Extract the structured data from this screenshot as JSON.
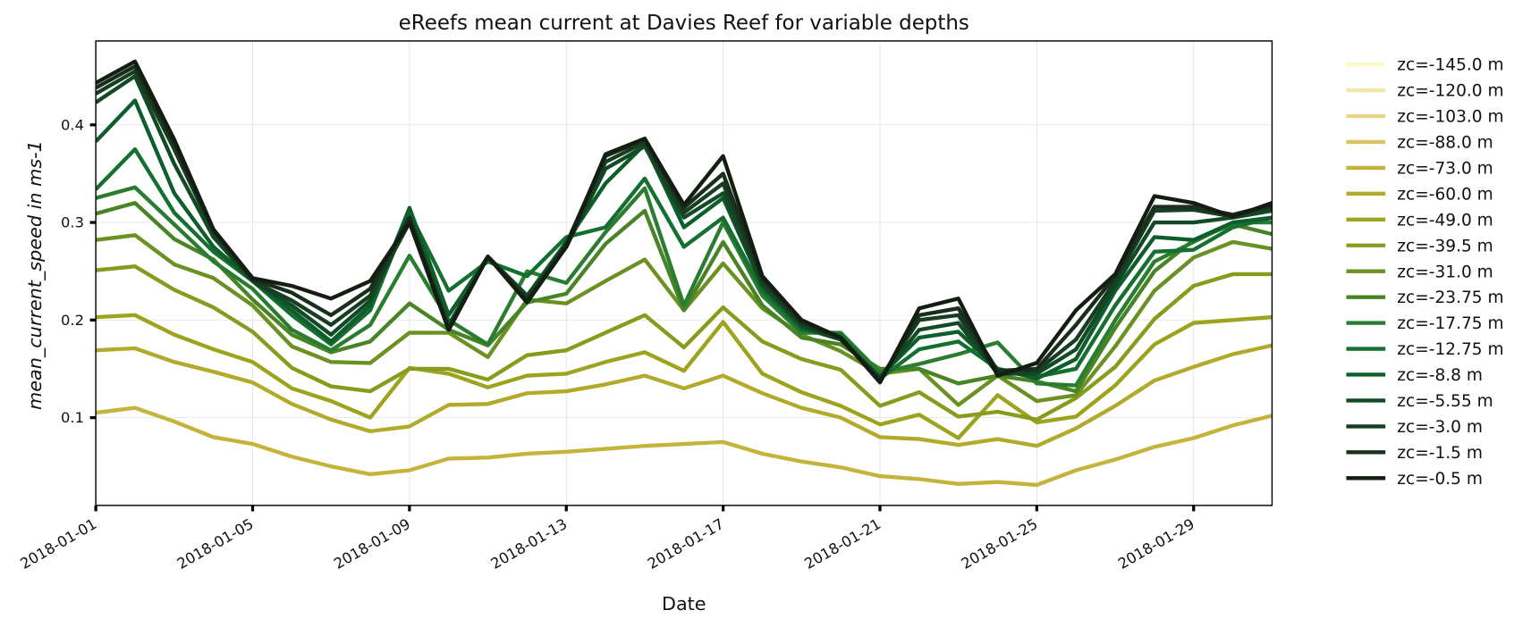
{
  "chart_data": {
    "type": "line",
    "title": "eReefs mean current at Davies Reef for variable depths",
    "xlabel": "Date",
    "ylabel": "mean_current_speed in ms-1",
    "x": [
      "2018-01-01",
      "2018-01-02",
      "2018-01-03",
      "2018-01-04",
      "2018-01-05",
      "2018-01-06",
      "2018-01-07",
      "2018-01-08",
      "2018-01-09",
      "2018-01-10",
      "2018-01-11",
      "2018-01-12",
      "2018-01-13",
      "2018-01-14",
      "2018-01-15",
      "2018-01-16",
      "2018-01-17",
      "2018-01-18",
      "2018-01-19",
      "2018-01-20",
      "2018-01-21",
      "2018-01-22",
      "2018-01-23",
      "2018-01-24",
      "2018-01-25",
      "2018-01-26",
      "2018-01-27",
      "2018-01-28",
      "2018-01-29",
      "2018-01-30",
      "2018-01-31"
    ],
    "xlim": [
      "2018-01-01",
      "2018-01-31"
    ],
    "xticks": [
      "2018-01-01",
      "2018-01-05",
      "2018-01-09",
      "2018-01-13",
      "2018-01-17",
      "2018-01-21",
      "2018-01-25",
      "2018-01-29"
    ],
    "ylim": [
      0.01,
      0.486
    ],
    "yticks": [
      0.1,
      0.2,
      0.3,
      0.4
    ],
    "grid": true,
    "legend": "outside right",
    "series": [
      {
        "name": "zc=-145.0 m",
        "color": "#fdf9c4",
        "values": [
          null,
          null,
          null,
          null,
          null,
          null,
          null,
          null,
          null,
          null,
          null,
          null,
          null,
          null,
          null,
          null,
          null,
          null,
          null,
          null,
          null,
          null,
          null,
          null,
          null,
          null,
          null,
          null,
          null,
          null,
          null
        ]
      },
      {
        "name": "zc=-120.0 m",
        "color": "#f3e7a6",
        "values": [
          null,
          null,
          null,
          null,
          null,
          null,
          null,
          null,
          null,
          null,
          null,
          null,
          null,
          null,
          null,
          null,
          null,
          null,
          null,
          null,
          null,
          null,
          null,
          null,
          null,
          null,
          null,
          null,
          null,
          null,
          null
        ]
      },
      {
        "name": "zc=-103.0 m",
        "color": "#e8d486",
        "values": [
          null,
          null,
          null,
          null,
          null,
          null,
          null,
          null,
          null,
          null,
          null,
          null,
          null,
          null,
          null,
          null,
          null,
          null,
          null,
          null,
          null,
          null,
          null,
          null,
          null,
          null,
          null,
          null,
          null,
          null,
          null
        ]
      },
      {
        "name": "zc=-88.0 m",
        "color": "#dac361",
        "values": [
          null,
          null,
          null,
          null,
          null,
          null,
          null,
          null,
          null,
          null,
          null,
          null,
          null,
          null,
          null,
          null,
          null,
          null,
          null,
          null,
          null,
          null,
          null,
          null,
          null,
          null,
          null,
          null,
          null,
          null,
          null
        ]
      },
      {
        "name": "zc=-73.0 m",
        "color": "#c4b43c",
        "values": [
          0.105,
          0.11,
          0.096,
          0.08,
          0.073,
          0.06,
          0.05,
          0.042,
          0.046,
          0.058,
          0.059,
          0.063,
          0.065,
          0.068,
          0.071,
          0.073,
          0.075,
          0.063,
          0.055,
          0.049,
          0.04,
          0.037,
          0.032,
          0.034,
          0.031,
          0.046,
          0.057,
          0.07,
          0.079,
          0.092,
          0.102
        ]
      },
      {
        "name": "zc=-60.0 m",
        "color": "#b2aa2a",
        "values": [
          0.169,
          0.171,
          0.157,
          0.147,
          0.136,
          0.114,
          0.098,
          0.086,
          0.091,
          0.113,
          0.114,
          0.125,
          0.127,
          0.134,
          0.143,
          0.13,
          0.143,
          0.125,
          0.11,
          0.1,
          0.08,
          0.078,
          0.072,
          0.078,
          0.071,
          0.089,
          0.112,
          0.138,
          0.152,
          0.165,
          0.174
        ]
      },
      {
        "name": "zc=-49.0 m",
        "color": "#9ea31d",
        "values": [
          0.203,
          0.205,
          0.185,
          0.17,
          0.157,
          0.13,
          0.117,
          0.1,
          0.151,
          0.145,
          0.131,
          0.143,
          0.145,
          0.157,
          0.167,
          0.148,
          0.198,
          0.145,
          0.126,
          0.112,
          0.093,
          0.103,
          0.079,
          0.123,
          0.095,
          0.101,
          0.133,
          0.175,
          0.197,
          0.2,
          0.203
        ]
      },
      {
        "name": "zc=-39.5 m",
        "color": "#879b1c",
        "values": [
          0.251,
          0.255,
          0.231,
          0.213,
          0.188,
          0.151,
          0.132,
          0.127,
          0.15,
          0.15,
          0.139,
          0.164,
          0.169,
          0.187,
          0.205,
          0.172,
          0.213,
          0.178,
          0.16,
          0.149,
          0.112,
          0.126,
          0.101,
          0.106,
          0.098,
          0.12,
          0.152,
          0.201,
          0.235,
          0.247,
          0.247
        ]
      },
      {
        "name": "zc=-31.0 m",
        "color": "#6a9121",
        "values": [
          0.282,
          0.287,
          0.257,
          0.243,
          0.215,
          0.173,
          0.157,
          0.156,
          0.187,
          0.187,
          0.162,
          0.221,
          0.217,
          0.24,
          0.262,
          0.21,
          0.258,
          0.212,
          0.185,
          0.168,
          0.145,
          0.15,
          0.113,
          0.143,
          0.117,
          0.123,
          0.173,
          0.23,
          0.264,
          0.28,
          0.273
        ]
      },
      {
        "name": "zc=-23.75 m",
        "color": "#488426",
        "values": [
          0.309,
          0.32,
          0.283,
          0.262,
          0.221,
          0.185,
          0.167,
          0.178,
          0.217,
          0.19,
          0.174,
          0.218,
          0.227,
          0.278,
          0.312,
          0.21,
          0.28,
          0.215,
          0.182,
          0.175,
          0.15,
          0.15,
          0.135,
          0.143,
          0.137,
          0.127,
          0.192,
          0.25,
          0.282,
          0.298,
          0.288
        ]
      },
      {
        "name": "zc=-17.75 m",
        "color": "#2a7d30",
        "values": [
          0.325,
          0.336,
          0.298,
          0.26,
          0.232,
          0.19,
          0.169,
          0.195,
          0.266,
          0.2,
          0.175,
          0.25,
          0.238,
          0.29,
          0.335,
          0.215,
          0.3,
          0.225,
          0.187,
          0.187,
          0.146,
          0.155,
          0.165,
          0.177,
          0.135,
          0.133,
          0.2,
          0.26,
          0.28,
          0.3,
          0.3
        ]
      },
      {
        "name": "zc=-12.75 m",
        "color": "#146f30",
        "values": [
          0.334,
          0.375,
          0.31,
          0.27,
          0.24,
          0.205,
          0.175,
          0.21,
          0.31,
          0.23,
          0.26,
          0.245,
          0.285,
          0.295,
          0.345,
          0.275,
          0.305,
          0.23,
          0.19,
          0.185,
          0.14,
          0.17,
          0.178,
          0.15,
          0.142,
          0.15,
          0.215,
          0.27,
          0.272,
          0.295,
          0.305
        ]
      },
      {
        "name": "zc=-8.8 m",
        "color": "#0e5e2b",
        "values": [
          0.383,
          0.425,
          0.33,
          0.275,
          0.24,
          0.21,
          0.178,
          0.215,
          0.315,
          0.205,
          0.265,
          0.225,
          0.28,
          0.34,
          0.38,
          0.295,
          0.325,
          0.235,
          0.192,
          0.18,
          0.142,
          0.182,
          0.188,
          0.15,
          0.14,
          0.16,
          0.23,
          0.285,
          0.282,
          0.3,
          0.305
        ]
      },
      {
        "name": "zc=-5.55 m",
        "color": "#124a26",
        "values": [
          0.423,
          0.45,
          0.36,
          0.285,
          0.24,
          0.215,
          0.185,
          0.22,
          0.305,
          0.195,
          0.265,
          0.225,
          0.275,
          0.355,
          0.378,
          0.305,
          0.33,
          0.235,
          0.195,
          0.18,
          0.14,
          0.19,
          0.197,
          0.145,
          0.145,
          0.17,
          0.235,
          0.3,
          0.3,
          0.305,
          0.312
        ]
      },
      {
        "name": "zc=-3.0 m",
        "color": "#173d22",
        "values": [
          0.432,
          0.455,
          0.375,
          0.29,
          0.24,
          0.22,
          0.195,
          0.225,
          0.3,
          0.19,
          0.265,
          0.222,
          0.275,
          0.362,
          0.382,
          0.31,
          0.34,
          0.24,
          0.195,
          0.18,
          0.14,
          0.2,
          0.205,
          0.145,
          0.148,
          0.18,
          0.24,
          0.312,
          0.313,
          0.306,
          0.315
        ]
      },
      {
        "name": "zc=-1.5 m",
        "color": "#1a2e1c",
        "values": [
          0.438,
          0.46,
          0.38,
          0.292,
          0.242,
          0.228,
          0.205,
          0.232,
          0.305,
          0.19,
          0.265,
          0.22,
          0.278,
          0.368,
          0.385,
          0.315,
          0.35,
          0.243,
          0.198,
          0.182,
          0.138,
          0.205,
          0.212,
          0.148,
          0.15,
          0.195,
          0.245,
          0.316,
          0.316,
          0.308,
          0.318
        ]
      },
      {
        "name": "zc=-0.5 m",
        "color": "#131d12",
        "values": [
          0.443,
          0.465,
          0.385,
          0.293,
          0.243,
          0.235,
          0.222,
          0.24,
          0.3,
          0.19,
          0.265,
          0.218,
          0.275,
          0.37,
          0.386,
          0.318,
          0.368,
          0.245,
          0.2,
          0.182,
          0.136,
          0.212,
          0.222,
          0.143,
          0.156,
          0.21,
          0.247,
          0.327,
          0.32,
          0.306,
          0.32
        ]
      }
    ]
  }
}
